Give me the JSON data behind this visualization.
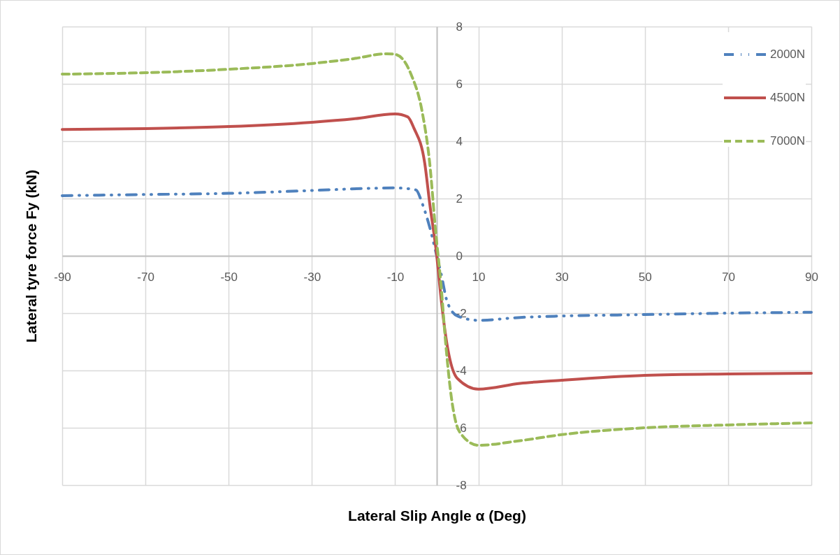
{
  "chart_data": {
    "type": "line",
    "xlabel": "Lateral Slip Angle α (Deg)",
    "ylabel": "Lateral tyre force Fy (kN)",
    "xlim": [
      -90,
      90
    ],
    "xticks": [
      -90,
      -70,
      -50,
      -30,
      -10,
      10,
      30,
      50,
      70,
      90
    ],
    "ylim": [
      -8,
      8
    ],
    "yticks": [
      -8,
      -6,
      -4,
      -2,
      0,
      2,
      4,
      6,
      8
    ],
    "grid": true,
    "legend": "top right",
    "marker": "none",
    "series": [
      {
        "name": "2000N",
        "color": "#4f81bd",
        "line_style": "dotted",
        "x": [
          -90,
          -70,
          -50,
          -30,
          -15,
          -10,
          -5,
          -3.5,
          -1.7,
          0,
          1,
          2.5,
          5,
          10,
          20,
          30,
          50,
          70,
          90
        ],
        "values": [
          2.1,
          2.14,
          2.18,
          2.28,
          2.36,
          2.37,
          2.3,
          1.83,
          1.0,
          0,
          -0.6,
          -1.6,
          -2.1,
          -2.25,
          -2.15,
          -2.1,
          -2.05,
          -2.0,
          -1.97
        ]
      },
      {
        "name": "4500N",
        "color": "#c0504d",
        "line_style": "solid",
        "x": [
          -90,
          -70,
          -50,
          -30,
          -20,
          -10,
          -7,
          -5.5,
          -2.9,
          -1.7,
          0,
          1,
          2.2,
          4.9,
          10,
          20,
          30,
          50,
          70,
          90
        ],
        "values": [
          4.41,
          4.44,
          4.51,
          4.66,
          4.78,
          4.95,
          4.85,
          4.46,
          3.24,
          1.83,
          0,
          -1.44,
          -2.85,
          -4.27,
          -4.65,
          -4.45,
          -4.34,
          -4.17,
          -4.12,
          -4.1
        ]
      },
      {
        "name": "7000N",
        "color": "#9bbb59",
        "line_style": "dashed",
        "x": [
          -90,
          -70,
          -50,
          -30,
          -20,
          -12,
          -10,
          -6.2,
          -3.5,
          -1.7,
          -0.3,
          1,
          2.2,
          3.5,
          5.5,
          10,
          20,
          30,
          50,
          70,
          90
        ],
        "values": [
          6.34,
          6.39,
          6.51,
          6.71,
          6.88,
          7.05,
          7.03,
          6.34,
          5.02,
          3.24,
          0.9,
          -0.98,
          -3.15,
          -4.93,
          -6.15,
          -6.61,
          -6.45,
          -6.24,
          -6.0,
          -5.9,
          -5.83
        ]
      }
    ]
  }
}
